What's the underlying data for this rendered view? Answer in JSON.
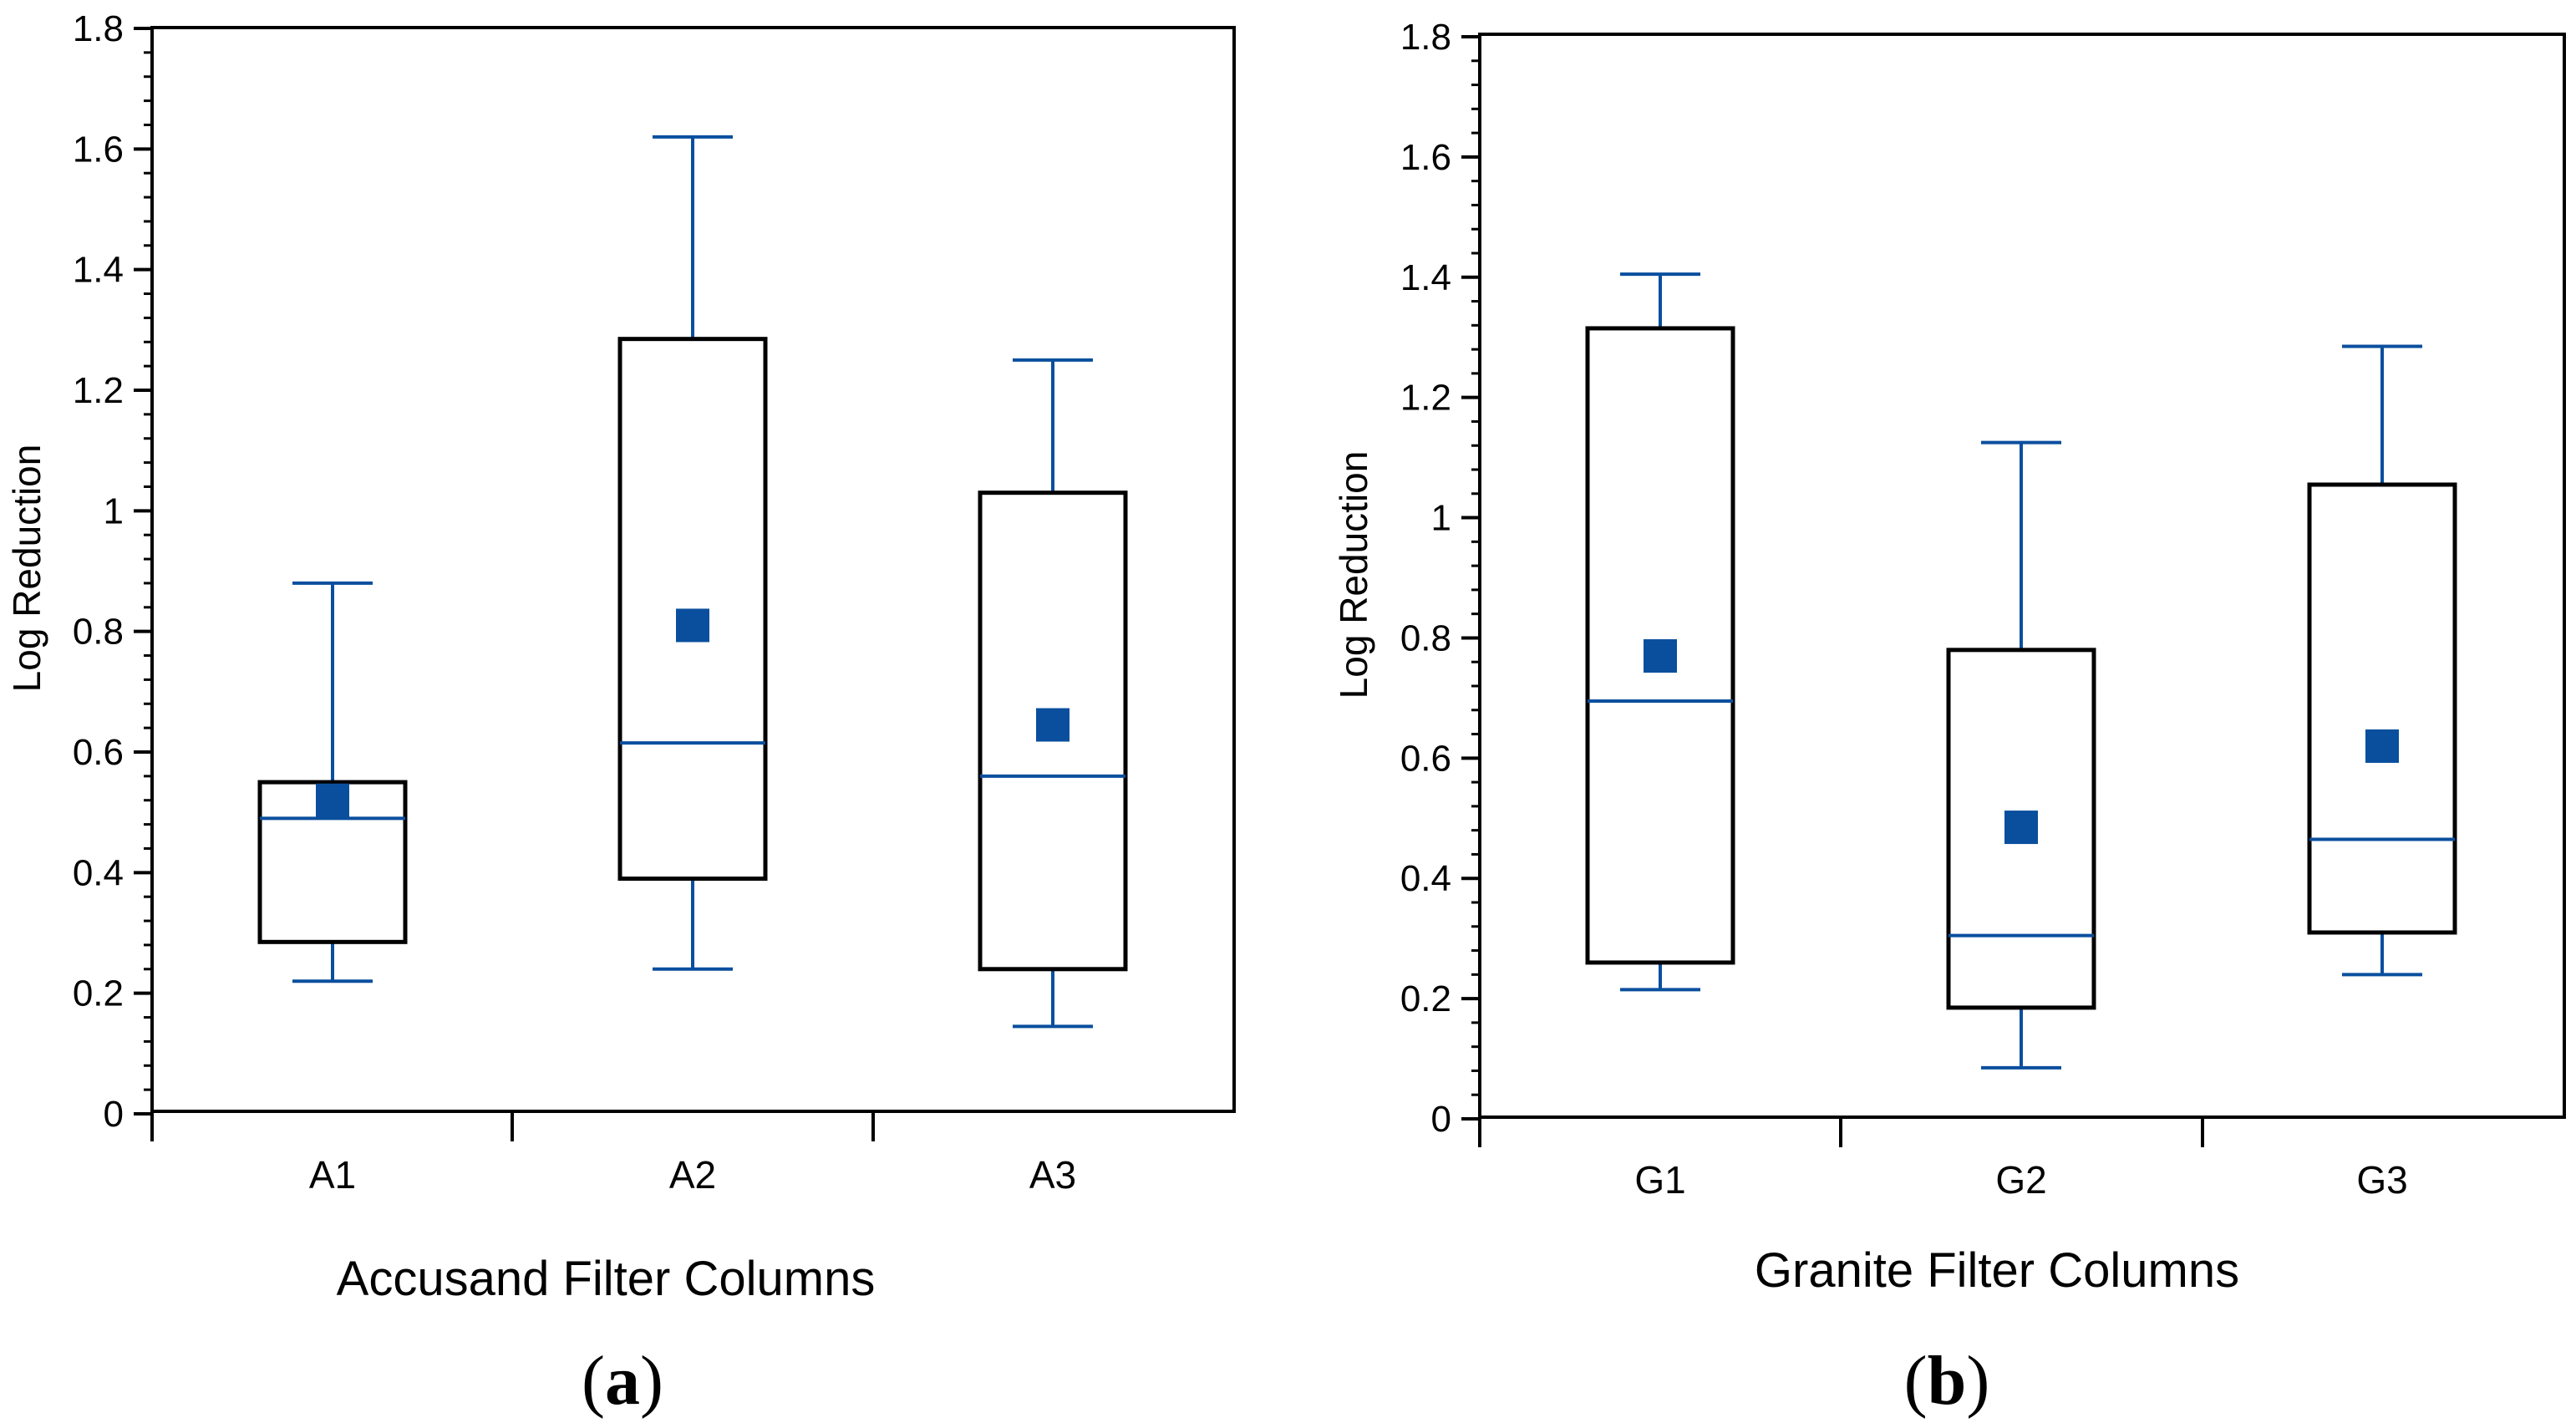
{
  "colors": {
    "accent": "#0a4f9e",
    "frame": "#000000",
    "background": "#ffffff"
  },
  "chart_data": [
    {
      "type": "box",
      "panel_label": "a",
      "title": "",
      "xlabel": "Accusand Filter Columns",
      "ylabel": "Log Reduction",
      "ylim": [
        0,
        1.8
      ],
      "yticks": [
        {
          "value": 0,
          "label": "0"
        },
        {
          "value": 0.2,
          "label": "0.2"
        },
        {
          "value": 0.4,
          "label": "0.4"
        },
        {
          "value": 0.6,
          "label": "0.6"
        },
        {
          "value": 0.8,
          "label": "0.8"
        },
        {
          "value": 1,
          "label": "1"
        },
        {
          "value": 1.2,
          "label": "1.2"
        },
        {
          "value": 1.4,
          "label": "1.4"
        },
        {
          "value": 1.6,
          "label": "1.6"
        },
        {
          "value": 1.8,
          "label": "1.8"
        }
      ],
      "y_minor_step": 0.04,
      "categories": [
        "A1",
        "A2",
        "A3"
      ],
      "boxes": [
        {
          "category": "A1",
          "min": 0.22,
          "q1": 0.285,
          "median": 0.49,
          "q3": 0.55,
          "max": 0.88,
          "mean": 0.52
        },
        {
          "category": "A2",
          "min": 0.24,
          "q1": 0.39,
          "median": 0.615,
          "q3": 1.285,
          "max": 1.62,
          "mean": 0.81
        },
        {
          "category": "A3",
          "min": 0.145,
          "q1": 0.24,
          "median": 0.56,
          "q3": 1.03,
          "max": 1.25,
          "mean": 0.645
        }
      ]
    },
    {
      "type": "box",
      "panel_label": "b",
      "title": "",
      "xlabel": "Granite Filter Columns",
      "ylabel": "Log Reduction",
      "ylim": [
        0,
        1.8
      ],
      "yticks": [
        {
          "value": 0,
          "label": "0"
        },
        {
          "value": 0.2,
          "label": "0.2"
        },
        {
          "value": 0.4,
          "label": "0.4"
        },
        {
          "value": 0.6,
          "label": "0.6"
        },
        {
          "value": 0.8,
          "label": "0.8"
        },
        {
          "value": 1,
          "label": "1"
        },
        {
          "value": 1.2,
          "label": "1.2"
        },
        {
          "value": 1.4,
          "label": "1.4"
        },
        {
          "value": 1.6,
          "label": "1.6"
        },
        {
          "value": 1.8,
          "label": "1.8"
        }
      ],
      "y_minor_step": 0.04,
      "categories": [
        "G1",
        "G2",
        "G3"
      ],
      "boxes": [
        {
          "category": "G1",
          "min": 0.215,
          "q1": 0.26,
          "median": 0.695,
          "q3": 1.315,
          "max": 1.405,
          "mean": 0.77
        },
        {
          "category": "G2",
          "min": 0.085,
          "q1": 0.185,
          "median": 0.305,
          "q3": 0.78,
          "max": 1.125,
          "mean": 0.485
        },
        {
          "category": "G3",
          "min": 0.24,
          "q1": 0.31,
          "median": 0.465,
          "q3": 1.055,
          "max": 1.285,
          "mean": 0.62
        }
      ]
    }
  ]
}
